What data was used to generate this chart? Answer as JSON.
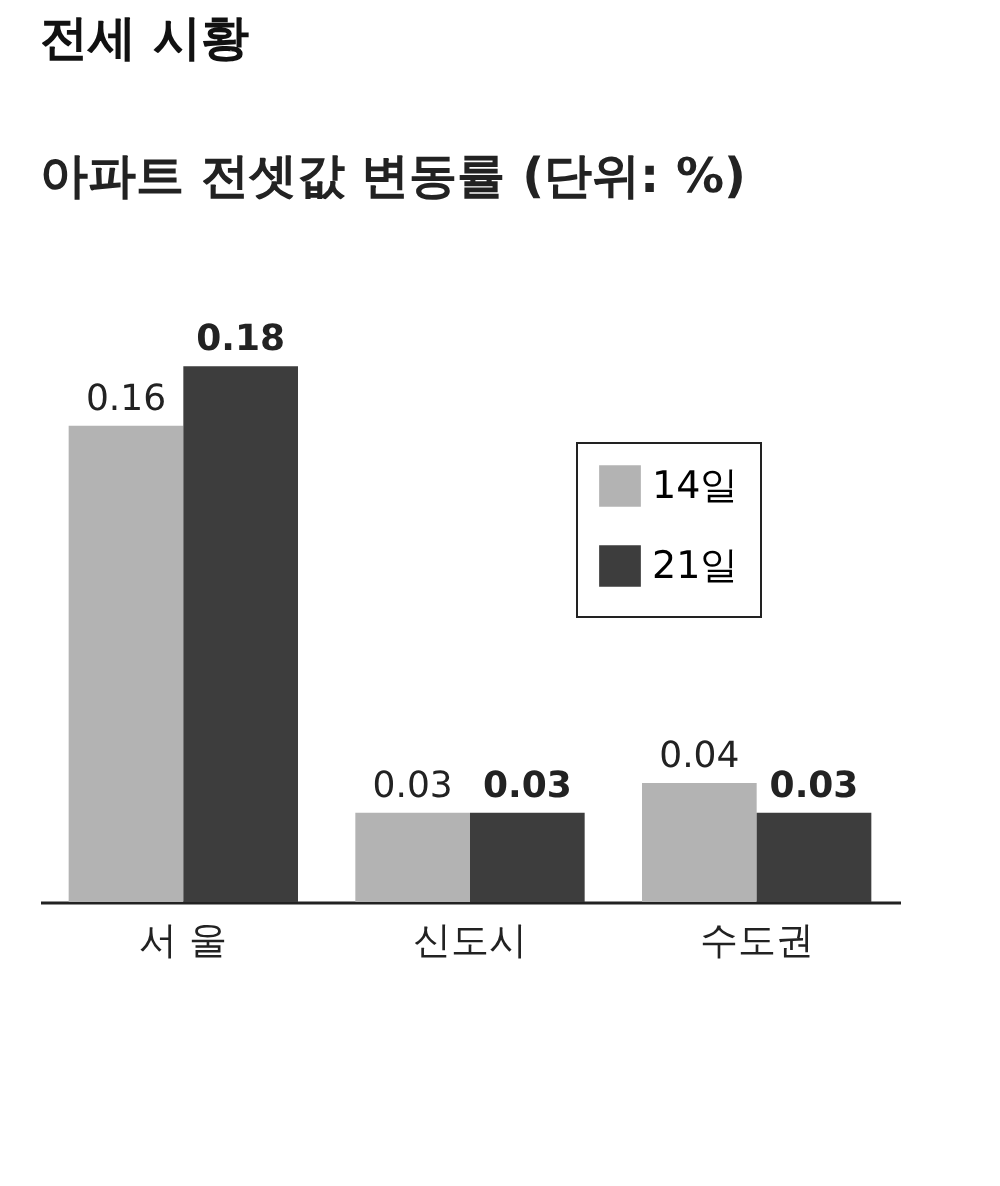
{
  "chart_data": {
    "type": "bar",
    "title": "전세 시황",
    "subtitle": "아파트 전셋값 변동률 (단위: %)",
    "categories": [
      "서 울",
      "신도시",
      "수도권"
    ],
    "series": [
      {
        "name": "14일",
        "color": "#b3b3b3",
        "values": [
          0.16,
          0.03,
          0.04
        ]
      },
      {
        "name": "21일",
        "color": "#3d3d3d",
        "values": [
          0.18,
          0.03,
          0.03
        ]
      }
    ],
    "data_labels": true,
    "legend": "top right"
  }
}
